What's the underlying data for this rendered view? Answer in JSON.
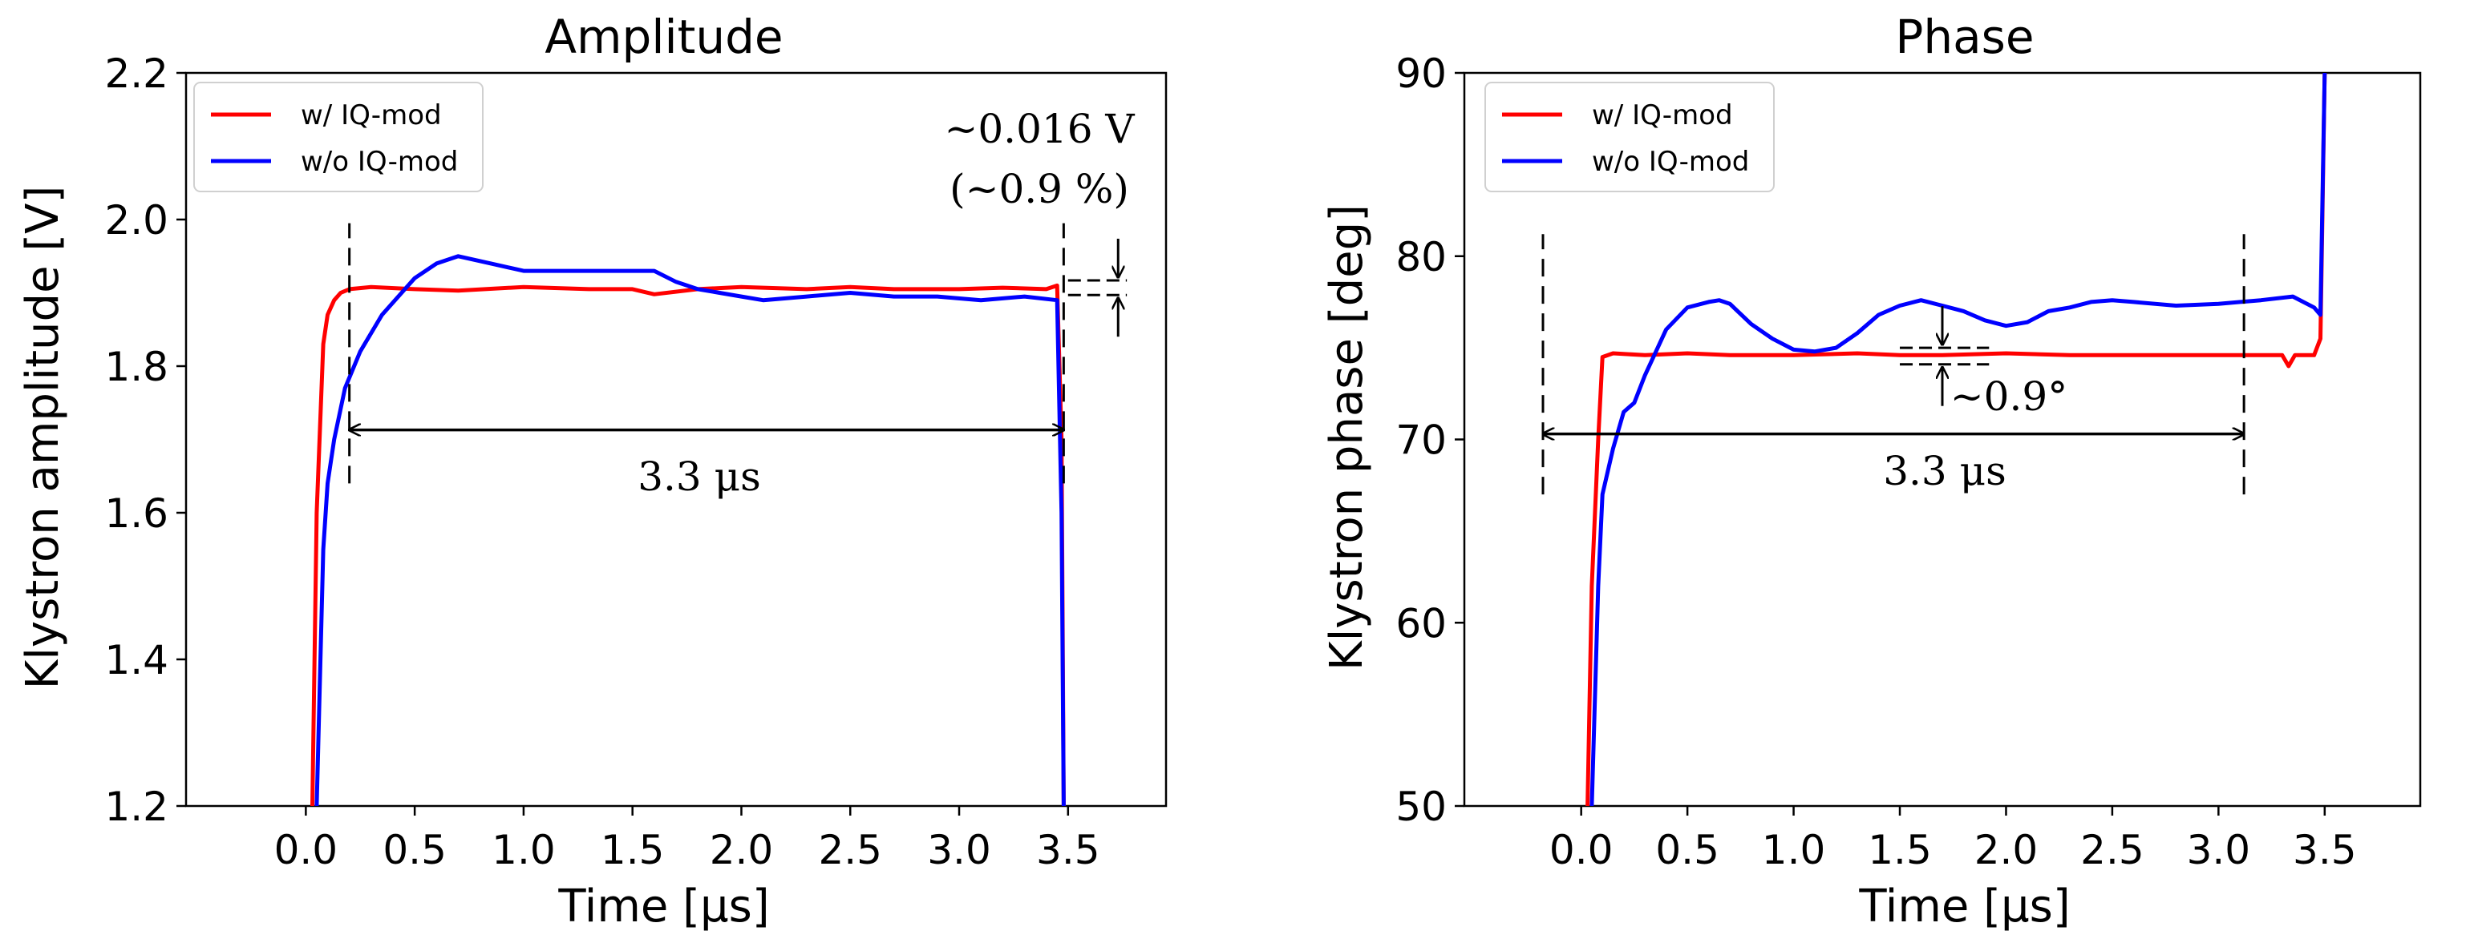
{
  "chart_data": [
    {
      "type": "line",
      "title": "Amplitude",
      "xlabel": "Time [μs]",
      "ylabel": "Klystron amplitude [V]",
      "xlim": [
        -0.55,
        3.95
      ],
      "ylim": [
        1.2,
        2.2
      ],
      "xticks": [
        0.0,
        0.5,
        1.0,
        1.5,
        2.0,
        2.5,
        3.0,
        3.5
      ],
      "xtick_labels": [
        "0.0",
        "0.5",
        "1.0",
        "1.5",
        "2.0",
        "2.5",
        "3.0",
        "3.5"
      ],
      "yticks": [
        1.2,
        1.4,
        1.6,
        1.8,
        2.0,
        2.2
      ],
      "ytick_labels": [
        "1.2",
        "1.4",
        "1.6",
        "1.8",
        "2.0",
        "2.2"
      ],
      "legend": {
        "placement": "top-left",
        "entries": [
          "w/ IQ-mod",
          "w/o IQ-mod"
        ]
      },
      "series": [
        {
          "name": "w/ IQ-mod",
          "color": "#ff0000",
          "x": [
            0.03,
            0.05,
            0.08,
            0.1,
            0.13,
            0.16,
            0.2,
            0.3,
            0.5,
            0.7,
            1.0,
            1.3,
            1.5,
            1.6,
            1.8,
            2.0,
            2.3,
            2.5,
            2.7,
            3.0,
            3.2,
            3.4,
            3.45,
            3.47,
            3.48
          ],
          "y": [
            1.2,
            1.6,
            1.83,
            1.87,
            1.89,
            1.9,
            1.905,
            1.908,
            1.905,
            1.903,
            1.908,
            1.905,
            1.905,
            1.898,
            1.905,
            1.908,
            1.905,
            1.908,
            1.905,
            1.905,
            1.907,
            1.905,
            1.91,
            1.7,
            1.2
          ]
        },
        {
          "name": "w/o IQ-mod",
          "color": "#0000ff",
          "x": [
            0.05,
            0.08,
            0.1,
            0.13,
            0.18,
            0.25,
            0.35,
            0.5,
            0.6,
            0.7,
            0.85,
            1.0,
            1.2,
            1.4,
            1.6,
            1.7,
            1.8,
            1.9,
            2.0,
            2.1,
            2.3,
            2.5,
            2.7,
            2.9,
            3.1,
            3.3,
            3.45,
            3.47,
            3.48
          ],
          "y": [
            1.2,
            1.55,
            1.64,
            1.7,
            1.77,
            1.82,
            1.87,
            1.92,
            1.94,
            1.95,
            1.94,
            1.93,
            1.93,
            1.93,
            1.93,
            1.915,
            1.905,
            1.9,
            1.895,
            1.89,
            1.895,
            1.9,
            1.895,
            1.895,
            1.89,
            1.895,
            1.89,
            1.6,
            1.2
          ]
        }
      ],
      "annotations": {
        "duration_text": "3.3 μs",
        "duration_range": [
          0.2,
          3.48
        ],
        "duration_arrow_y": 1.713,
        "boundary_lines_x": [
          0.2,
          3.48
        ],
        "boundary_lines_y": [
          1.64,
          1.995
        ],
        "ripple_text_line1": "~0.016 V",
        "ripple_text_line2": "(~0.9 %)",
        "ripple_lines_y": [
          1.917,
          1.897
        ],
        "ripple_lines_x": [
          3.5,
          3.77
        ],
        "ripple_arrow_x": 3.73
      }
    },
    {
      "type": "line",
      "title": "Phase",
      "xlabel": "Time [μs]",
      "ylabel": "Klystron phase [deg]",
      "xlim": [
        -0.55,
        3.95
      ],
      "ylim": [
        50,
        90
      ],
      "xticks": [
        0.0,
        0.5,
        1.0,
        1.5,
        2.0,
        2.5,
        3.0,
        3.5
      ],
      "xtick_labels": [
        "0.0",
        "0.5",
        "1.0",
        "1.5",
        "2.0",
        "2.5",
        "3.0",
        "3.5"
      ],
      "yticks": [
        50,
        60,
        70,
        80,
        90
      ],
      "ytick_labels": [
        "50",
        "60",
        "70",
        "80",
        "90"
      ],
      "legend": {
        "placement": "top-left",
        "entries": [
          "w/ IQ-mod",
          "w/o IQ-mod"
        ]
      },
      "series": [
        {
          "name": "w/ IQ-mod",
          "color": "#ff0000",
          "x": [
            0.03,
            0.05,
            0.08,
            0.1,
            0.15,
            0.3,
            0.5,
            0.7,
            1.0,
            1.3,
            1.5,
            1.7,
            2.0,
            2.3,
            2.6,
            2.9,
            3.2,
            3.3,
            3.33,
            3.36,
            3.45,
            3.48,
            3.5
          ],
          "y": [
            50,
            62,
            70,
            74.5,
            74.7,
            74.6,
            74.7,
            74.6,
            74.6,
            74.7,
            74.6,
            74.6,
            74.7,
            74.6,
            74.6,
            74.6,
            74.6,
            74.6,
            74.0,
            74.6,
            74.6,
            75.5,
            90
          ]
        },
        {
          "name": "w/o IQ-mod",
          "color": "#0000ff",
          "x": [
            0.05,
            0.08,
            0.1,
            0.15,
            0.2,
            0.25,
            0.3,
            0.4,
            0.5,
            0.6,
            0.65,
            0.7,
            0.8,
            0.9,
            1.0,
            1.1,
            1.2,
            1.3,
            1.4,
            1.5,
            1.6,
            1.7,
            1.8,
            1.9,
            2.0,
            2.1,
            2.2,
            2.3,
            2.4,
            2.5,
            2.6,
            2.8,
            3.0,
            3.2,
            3.35,
            3.45,
            3.48,
            3.5
          ],
          "y": [
            50,
            62,
            67,
            69.5,
            71.5,
            72,
            73.5,
            76,
            77.2,
            77.5,
            77.6,
            77.4,
            76.3,
            75.5,
            74.9,
            74.8,
            75,
            75.8,
            76.8,
            77.3,
            77.6,
            77.3,
            77,
            76.5,
            76.2,
            76.4,
            77,
            77.2,
            77.5,
            77.6,
            77.5,
            77.3,
            77.4,
            77.6,
            77.8,
            77.2,
            76.8,
            90
          ]
        }
      ],
      "annotations": {
        "duration_text": "3.3 μs",
        "duration_range": [
          -0.18,
          3.12
        ],
        "duration_arrow_y": 70.3,
        "boundary_lines_x": [
          -0.18,
          3.12
        ],
        "boundary_lines_y": [
          67,
          81.2
        ],
        "ripple_text": "~0.9°",
        "ripple_lines_y": [
          75.0,
          74.1
        ],
        "ripple_lines_x": [
          1.5,
          1.92
        ],
        "ripple_arrow_x": 1.7
      }
    }
  ]
}
